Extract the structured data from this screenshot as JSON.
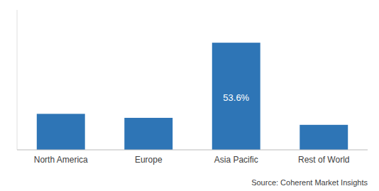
{
  "chart_data": {
    "type": "bar",
    "categories": [
      "North America",
      "Europe",
      "Asia Pacific",
      "Rest of World"
    ],
    "values": [
      18.0,
      16.0,
      53.6,
      12.5
    ],
    "value_labels": [
      null,
      null,
      "53.6%",
      null
    ],
    "color": "#2e75b6",
    "ylim": [
      0,
      70
    ],
    "tick_labels": "x",
    "source": "Source: Coherent Market Insights"
  }
}
